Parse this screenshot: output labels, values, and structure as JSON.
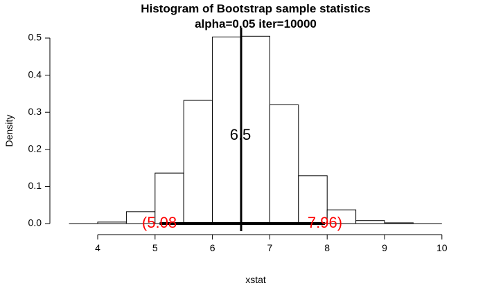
{
  "chart_data": {
    "type": "bar",
    "title": "Histogram of Bootstrap sample statistics",
    "subtitle": "alpha=0.05 iter=10000",
    "xlabel": "xstat",
    "ylabel": "Density",
    "xlim": [
      3.5,
      10
    ],
    "ylim": [
      0,
      0.5
    ],
    "x_ticks": [
      4,
      5,
      6,
      7,
      8,
      9,
      10
    ],
    "y_ticks": [
      "0.0",
      "0.1",
      "0.2",
      "0.3",
      "0.4",
      "0.5"
    ],
    "bins": [
      {
        "start": 3.5,
        "end": 4.0,
        "density": 0.0
      },
      {
        "start": 4.0,
        "end": 4.5,
        "density": 0.004
      },
      {
        "start": 4.5,
        "end": 5.0,
        "density": 0.032
      },
      {
        "start": 5.0,
        "end": 5.5,
        "density": 0.136
      },
      {
        "start": 5.5,
        "end": 6.0,
        "density": 0.332
      },
      {
        "start": 6.0,
        "end": 6.5,
        "density": 0.503
      },
      {
        "start": 6.5,
        "end": 7.0,
        "density": 0.505
      },
      {
        "start": 7.0,
        "end": 7.5,
        "density": 0.32
      },
      {
        "start": 7.5,
        "end": 8.0,
        "density": 0.129
      },
      {
        "start": 8.0,
        "end": 8.5,
        "density": 0.037
      },
      {
        "start": 8.5,
        "end": 9.0,
        "density": 0.008
      },
      {
        "start": 9.0,
        "end": 9.5,
        "density": 0.002
      },
      {
        "start": 9.5,
        "end": 10.0,
        "density": 0.0
      }
    ],
    "center_value": 6.5,
    "center_label": "6.5",
    "ci": {
      "lower": 5.08,
      "upper": 7.96
    },
    "ci_lower_label": "(5.08",
    "ci_upper_label": "7.96)",
    "ci_color": "#ff0000"
  }
}
